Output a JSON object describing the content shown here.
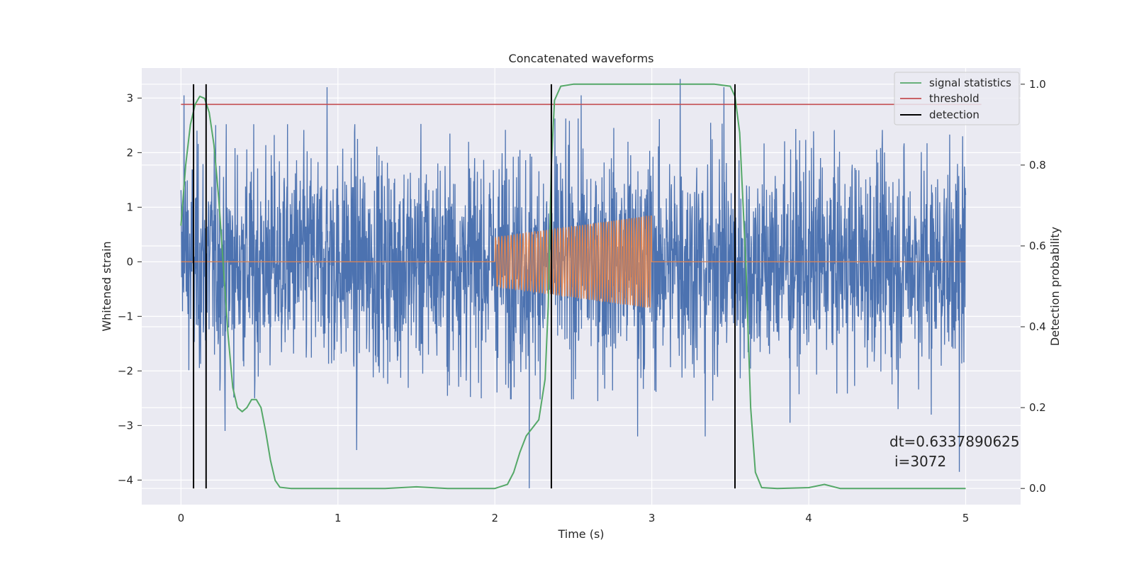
{
  "chart_data": {
    "type": "line",
    "title": "Concatenated waveforms",
    "xlabel": "Time (s)",
    "ylabel": "Whitened strain",
    "y2label": "Detection probability",
    "xlim": [
      -0.25,
      5.35
    ],
    "ylim": [
      -4.45,
      3.55
    ],
    "y2lim": [
      -0.04,
      1.04
    ],
    "x_ticks": [
      0,
      1,
      2,
      3,
      4,
      5
    ],
    "y_ticks": [
      -4,
      -3,
      -2,
      -1,
      0,
      1,
      2,
      3
    ],
    "y2_ticks": [
      0.0,
      0.2,
      0.4,
      0.6,
      0.8,
      1.0
    ],
    "x_tick_labels": [
      "0",
      "1",
      "2",
      "3",
      "4",
      "5"
    ],
    "y_tick_labels": [
      "−4",
      "−3",
      "−2",
      "−1",
      "0",
      "1",
      "2",
      "3"
    ],
    "y2_tick_labels": [
      "0.0",
      "0.2",
      "0.4",
      "0.6",
      "0.8",
      "1.0"
    ],
    "grid": true,
    "legend_position": "top-right",
    "colors": {
      "noise": "#4c72b0",
      "injection": "#dd8452",
      "signal_statistics": "#55a868",
      "threshold": "#c44e52",
      "detection": "#000000",
      "background": "#eaeaf2",
      "grid": "#ffffff"
    },
    "series": [
      {
        "name": "",
        "role": "noise",
        "axis": "left",
        "envelope_x": [
          0.0,
          0.5,
          1.0,
          1.5,
          2.0,
          2.5,
          3.0,
          3.5,
          4.0,
          4.5,
          5.0
        ],
        "envelope_high": [
          2.4,
          2.4,
          2.4,
          2.4,
          2.5,
          2.5,
          2.5,
          2.4,
          2.3,
          2.3,
          2.2
        ],
        "envelope_low": [
          -2.3,
          -2.4,
          -2.3,
          -2.3,
          -2.4,
          -2.4,
          -2.5,
          -2.4,
          -2.3,
          -2.3,
          -2.2
        ],
        "peaks": [
          {
            "x": 0.02,
            "y": 3.05
          },
          {
            "x": 0.16,
            "y": -2.6
          },
          {
            "x": 0.28,
            "y": -3.1
          },
          {
            "x": 0.47,
            "y": -2.5
          },
          {
            "x": 0.93,
            "y": 3.2
          },
          {
            "x": 1.12,
            "y": -3.45
          },
          {
            "x": 2.22,
            "y": -4.15
          },
          {
            "x": 2.55,
            "y": 3.05
          },
          {
            "x": 2.91,
            "y": -3.2
          },
          {
            "x": 3.18,
            "y": 3.35
          },
          {
            "x": 3.18,
            "y": -3.45
          },
          {
            "x": 3.34,
            "y": -3.2
          },
          {
            "x": 3.46,
            "y": 3.2
          },
          {
            "x": 3.88,
            "y": -2.95
          },
          {
            "x": 4.57,
            "y": -2.7
          },
          {
            "x": 4.78,
            "y": -2.8
          },
          {
            "x": 4.96,
            "y": -3.85
          },
          {
            "x": 4.98,
            "y": 2.3
          }
        ]
      },
      {
        "name": "",
        "role": "injection",
        "axis": "left",
        "x_start": 2.0,
        "x_end": 3.0,
        "amplitude_start": 0.45,
        "amplitude_end": 0.85,
        "cycles": 50
      },
      {
        "name": "signal statistics",
        "axis": "right",
        "x": [
          0.0,
          0.03,
          0.06,
          0.09,
          0.12,
          0.15,
          0.18,
          0.21,
          0.24,
          0.27,
          0.3,
          0.33,
          0.36,
          0.39,
          0.42,
          0.45,
          0.48,
          0.51,
          0.54,
          0.57,
          0.6,
          0.63,
          0.7,
          1.0,
          1.3,
          1.5,
          1.7,
          2.0,
          2.08,
          2.12,
          2.16,
          2.2,
          2.24,
          2.28,
          2.32,
          2.34,
          2.36,
          2.38,
          2.42,
          2.5,
          3.0,
          3.4,
          3.5,
          3.53,
          3.56,
          3.6,
          3.63,
          3.66,
          3.7,
          3.8,
          4.0,
          4.1,
          4.2,
          4.5,
          5.0
        ],
        "y": [
          0.65,
          0.8,
          0.9,
          0.95,
          0.97,
          0.965,
          0.93,
          0.85,
          0.72,
          0.55,
          0.38,
          0.25,
          0.2,
          0.19,
          0.2,
          0.22,
          0.22,
          0.2,
          0.14,
          0.07,
          0.02,
          0.003,
          0.0,
          0.0,
          0.0,
          0.004,
          0.0,
          0.0,
          0.01,
          0.04,
          0.09,
          0.13,
          0.15,
          0.17,
          0.27,
          0.45,
          0.8,
          0.96,
          0.995,
          1.0,
          1.0,
          1.0,
          0.995,
          0.97,
          0.88,
          0.55,
          0.2,
          0.04,
          0.002,
          0.0,
          0.002,
          0.01,
          0.0,
          0.0,
          0.0
        ]
      },
      {
        "name": "threshold",
        "axis": "right",
        "x": [
          0.0,
          5.1
        ],
        "y": [
          0.95,
          0.95
        ]
      },
      {
        "name": "detection",
        "axis": "right",
        "vlines": [
          0.08,
          0.16,
          2.36,
          3.53
        ],
        "ymin": 0.0,
        "ymax": 1.0
      }
    ],
    "annotations": [
      "dt=0.6337890625",
      "i=3072"
    ]
  }
}
